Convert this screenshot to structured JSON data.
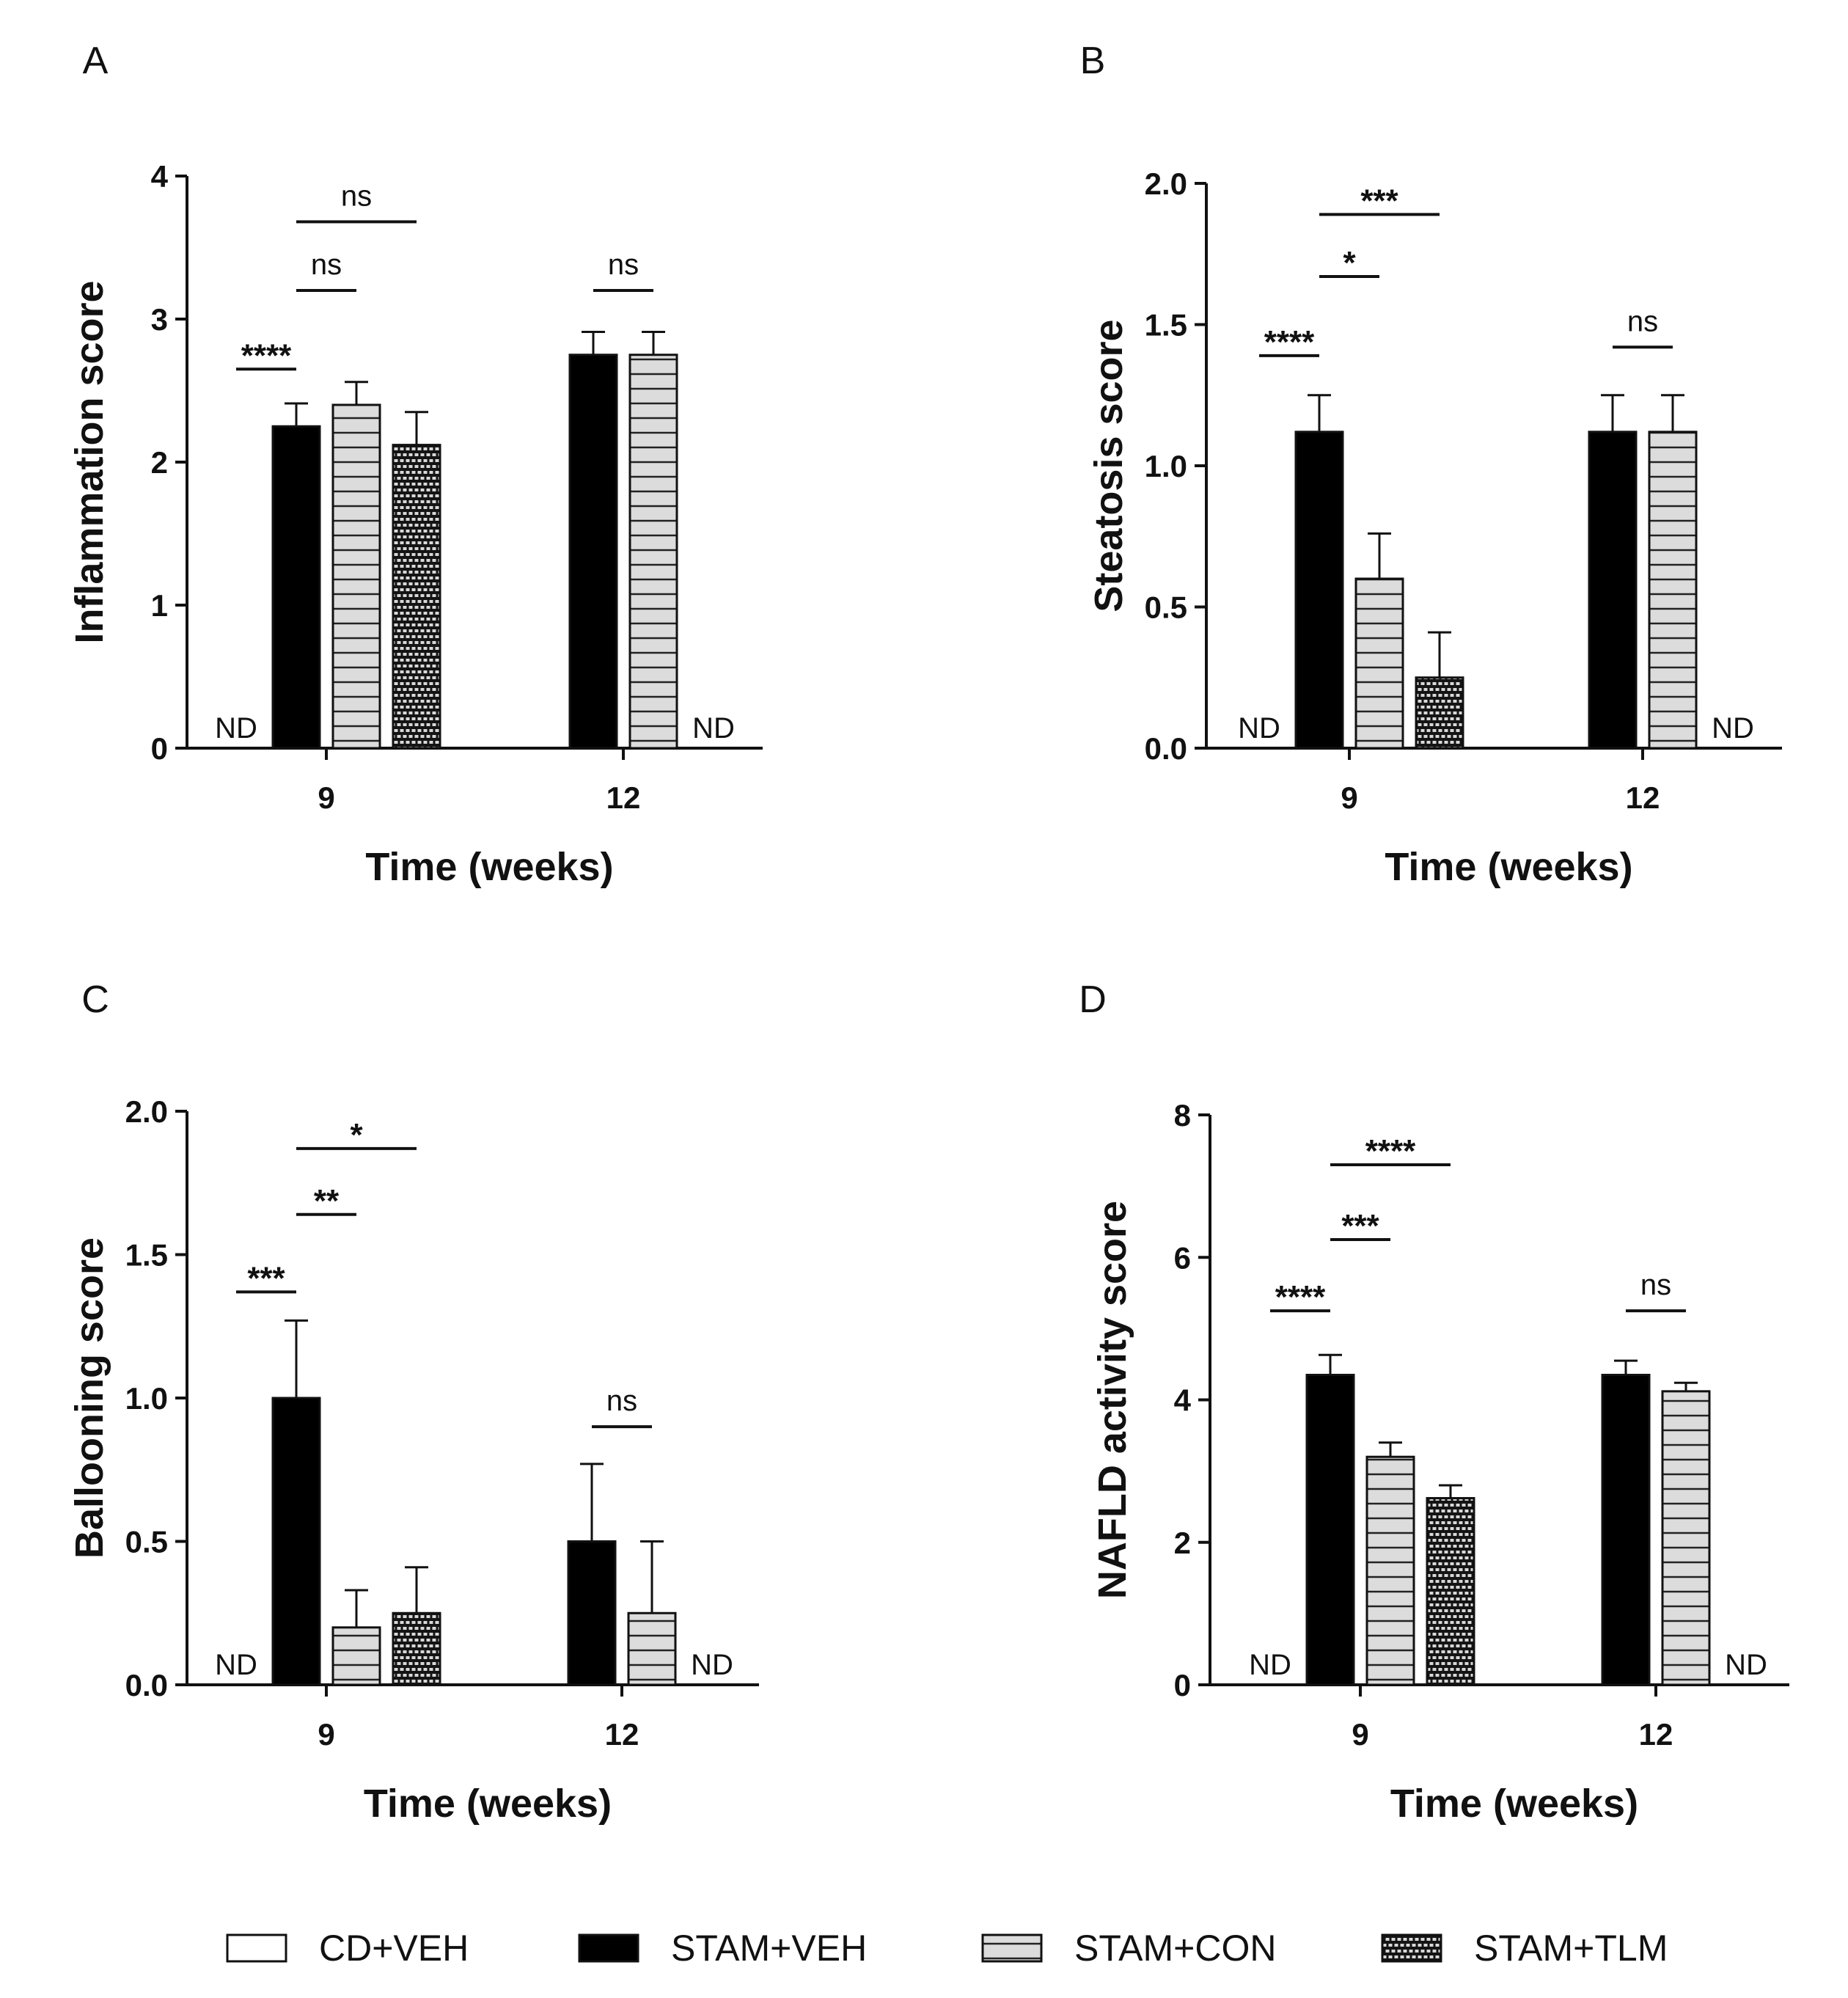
{
  "chart_data": [
    {
      "panel": "A",
      "type": "bar",
      "xlabel": "Time (weeks)",
      "ylabel": "Inflammation score",
      "ylim": [
        0,
        4
      ],
      "yticks": [
        "0",
        "1",
        "2",
        "3",
        "4"
      ],
      "categories": [
        "9",
        "12"
      ],
      "series": [
        {
          "name": "CD+VEH",
          "values": [
            null,
            null
          ],
          "errors": [
            null,
            null
          ]
        },
        {
          "name": "STAM+VEH",
          "values": [
            2.25,
            2.75
          ],
          "errors": [
            0.16,
            0.16
          ]
        },
        {
          "name": "STAM+CON",
          "values": [
            2.4,
            2.75
          ],
          "errors": [
            0.16,
            0.16
          ]
        },
        {
          "name": "STAM+TLM",
          "values": [
            2.12,
            null
          ],
          "errors": [
            0.23,
            null
          ]
        }
      ],
      "nd_labels": [
        {
          "category": "9",
          "series": "CD+VEH",
          "text": "ND"
        },
        {
          "category": "12",
          "series": "STAM+TLM",
          "text": "ND"
        }
      ],
      "annotations": [
        {
          "category": "9",
          "from": "CD+VEH",
          "to": "STAM+VEH",
          "label": "****",
          "level": 2.65
        },
        {
          "category": "9",
          "from": "STAM+VEH",
          "to": "STAM+CON",
          "label": "ns",
          "level": 3.2
        },
        {
          "category": "9",
          "from": "STAM+VEH",
          "to": "STAM+TLM",
          "label": "ns",
          "level": 3.68
        },
        {
          "category": "12",
          "from": "STAM+VEH",
          "to": "STAM+CON",
          "label": "ns",
          "level": 3.2
        }
      ]
    },
    {
      "panel": "B",
      "type": "bar",
      "xlabel": "Time (weeks)",
      "ylabel": "Steatosis score",
      "ylim": [
        0,
        2
      ],
      "yticks": [
        "0.0",
        "0.5",
        "1.0",
        "1.5",
        "2.0"
      ],
      "categories": [
        "9",
        "12"
      ],
      "series": [
        {
          "name": "CD+VEH",
          "values": [
            null,
            null
          ],
          "errors": [
            null,
            null
          ]
        },
        {
          "name": "STAM+VEH",
          "values": [
            1.12,
            1.12
          ],
          "errors": [
            0.13,
            0.13
          ]
        },
        {
          "name": "STAM+CON",
          "values": [
            0.6,
            1.12
          ],
          "errors": [
            0.16,
            0.13
          ]
        },
        {
          "name": "STAM+TLM",
          "values": [
            0.25,
            null
          ],
          "errors": [
            0.16,
            null
          ]
        }
      ],
      "nd_labels": [
        {
          "category": "9",
          "series": "CD+VEH",
          "text": "ND"
        },
        {
          "category": "12",
          "series": "STAM+TLM",
          "text": "ND"
        }
      ],
      "annotations": [
        {
          "category": "9",
          "from": "CD+VEH",
          "to": "STAM+VEH",
          "label": "****",
          "level": 1.39
        },
        {
          "category": "9",
          "from": "STAM+VEH",
          "to": "STAM+CON",
          "label": "*",
          "level": 1.67
        },
        {
          "category": "9",
          "from": "STAM+VEH",
          "to": "STAM+TLM",
          "label": "***",
          "level": 1.89
        },
        {
          "category": "12",
          "from": "STAM+VEH",
          "to": "STAM+CON",
          "label": "ns",
          "level": 1.42
        }
      ]
    },
    {
      "panel": "C",
      "type": "bar",
      "xlabel": "Time (weeks)",
      "ylabel": "Ballooning score",
      "ylim": [
        0,
        2
      ],
      "yticks": [
        "0.0",
        "0.5",
        "1.0",
        "1.5",
        "2.0"
      ],
      "categories": [
        "9",
        "12"
      ],
      "series": [
        {
          "name": "CD+VEH",
          "values": [
            null,
            null
          ],
          "errors": [
            null,
            null
          ]
        },
        {
          "name": "STAM+VEH",
          "values": [
            1.0,
            0.5
          ],
          "errors": [
            0.27,
            0.27
          ]
        },
        {
          "name": "STAM+CON",
          "values": [
            0.2,
            0.25
          ],
          "errors": [
            0.13,
            0.25
          ]
        },
        {
          "name": "STAM+TLM",
          "values": [
            0.25,
            null
          ],
          "errors": [
            0.16,
            null
          ]
        }
      ],
      "nd_labels": [
        {
          "category": "9",
          "series": "CD+VEH",
          "text": "ND"
        },
        {
          "category": "12",
          "series": "STAM+TLM",
          "text": "ND"
        }
      ],
      "annotations": [
        {
          "category": "9",
          "from": "CD+VEH",
          "to": "STAM+VEH",
          "label": "***",
          "level": 1.37
        },
        {
          "category": "9",
          "from": "STAM+VEH",
          "to": "STAM+CON",
          "label": "**",
          "level": 1.64
        },
        {
          "category": "9",
          "from": "STAM+VEH",
          "to": "STAM+TLM",
          "label": "*",
          "level": 1.87
        },
        {
          "category": "12",
          "from": "STAM+VEH",
          "to": "STAM+CON",
          "label": "ns",
          "level": 0.9
        }
      ]
    },
    {
      "panel": "D",
      "type": "bar",
      "xlabel": "Time (weeks)",
      "ylabel": "NAFLD activity score",
      "ylim": [
        0,
        8
      ],
      "yticks": [
        "0",
        "2",
        "4",
        "6",
        "8"
      ],
      "categories": [
        "9",
        "12"
      ],
      "series": [
        {
          "name": "CD+VEH",
          "values": [
            null,
            null
          ],
          "errors": [
            null,
            null
          ]
        },
        {
          "name": "STAM+VEH",
          "values": [
            4.35,
            4.35
          ],
          "errors": [
            0.28,
            0.2
          ]
        },
        {
          "name": "STAM+CON",
          "values": [
            3.2,
            4.12
          ],
          "errors": [
            0.2,
            0.12
          ]
        },
        {
          "name": "STAM+TLM",
          "values": [
            2.62,
            null
          ],
          "errors": [
            0.18,
            null
          ]
        }
      ],
      "nd_labels": [
        {
          "category": "9",
          "series": "CD+VEH",
          "text": "ND"
        },
        {
          "category": "12",
          "series": "STAM+TLM",
          "text": "ND"
        }
      ],
      "annotations": [
        {
          "category": "9",
          "from": "CD+VEH",
          "to": "STAM+VEH",
          "label": "****",
          "level": 5.25
        },
        {
          "category": "9",
          "from": "STAM+VEH",
          "to": "STAM+CON",
          "label": "***",
          "level": 6.25
        },
        {
          "category": "9",
          "from": "STAM+VEH",
          "to": "STAM+TLM",
          "label": "****",
          "level": 7.3
        },
        {
          "category": "12",
          "from": "STAM+VEH",
          "to": "STAM+CON",
          "label": "ns",
          "level": 5.25
        }
      ]
    }
  ],
  "legend": [
    {
      "name": "CD+VEH",
      "fill": "#ffffff"
    },
    {
      "name": "STAM+VEH",
      "fill": "#000000"
    },
    {
      "name": "STAM+CON",
      "fill": "#d6d6d6"
    },
    {
      "name": "STAM+TLM",
      "fill": "#1a1a1a"
    }
  ]
}
